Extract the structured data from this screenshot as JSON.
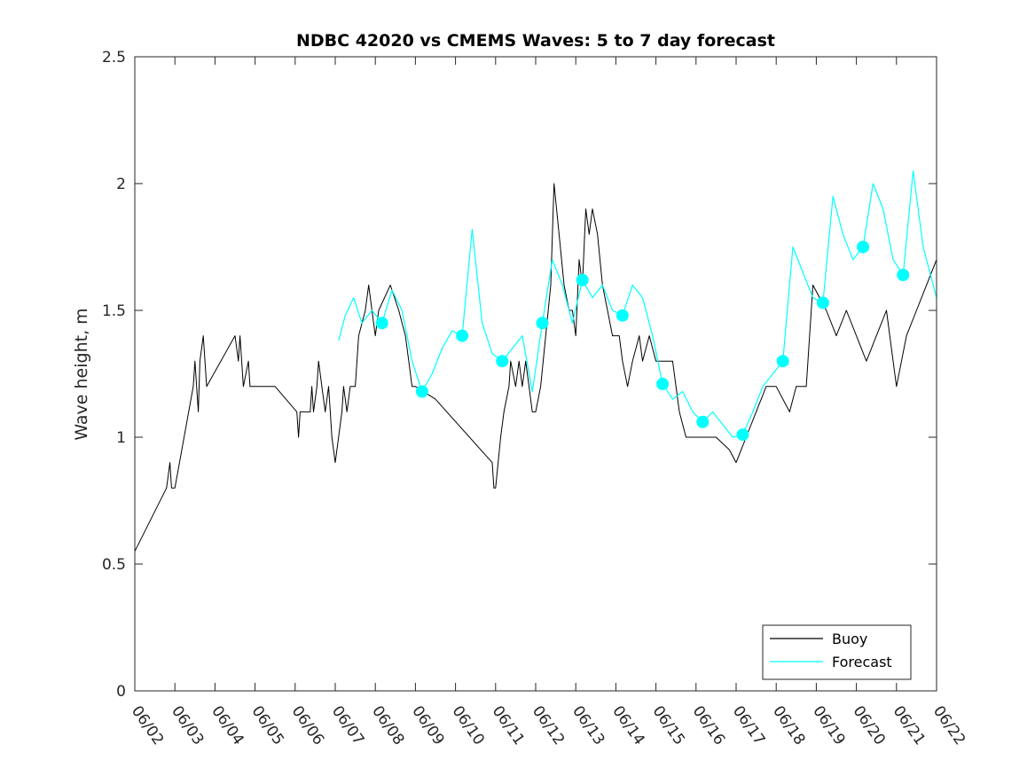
{
  "chart_data": {
    "type": "line",
    "title": "NDBC 42020 vs CMEMS Waves: 5 to 7 day forecast",
    "xlabel": "",
    "ylabel": "Wave height, m",
    "x_axis": {
      "kind": "date",
      "range": [
        "06/02",
        "06/22"
      ],
      "tick_labels": [
        "06/02",
        "06/03",
        "06/04",
        "06/05",
        "06/06",
        "06/07",
        "06/08",
        "06/09",
        "06/10",
        "06/11",
        "06/12",
        "06/13",
        "06/14",
        "06/15",
        "06/16",
        "06/17",
        "06/18",
        "06/19",
        "06/20",
        "06/21",
        "06/22"
      ]
    },
    "y_axis": {
      "range": [
        0,
        2.5
      ],
      "ticks": [
        0,
        0.5,
        1,
        1.5,
        2,
        2.5
      ],
      "tick_labels": [
        "0",
        "0.5",
        "1",
        "1.5",
        "2",
        "2.5"
      ]
    },
    "grid": false,
    "legend": {
      "placement": "bottom-right",
      "entries": [
        {
          "label": "Buoy",
          "color": "#000000"
        },
        {
          "label": "Forecast",
          "color": "#00ffff"
        }
      ]
    },
    "series": [
      {
        "name": "Buoy",
        "color": "#000000",
        "points": [
          [
            "06/02 00:00",
            0.55
          ],
          [
            "06/02 19:00",
            0.8
          ],
          [
            "06/02 21:00",
            0.9
          ],
          [
            "06/02 22:00",
            0.8
          ],
          [
            "06/03 00:00",
            0.8
          ],
          [
            "06/03 11:00",
            1.2
          ],
          [
            "06/03 12:00",
            1.3
          ],
          [
            "06/03 14:00",
            1.1
          ],
          [
            "06/03 15:00",
            1.3
          ],
          [
            "06/03 17:00",
            1.4
          ],
          [
            "06/03 18:00",
            1.3
          ],
          [
            "06/03 19:00",
            1.2
          ],
          [
            "06/04 12:00",
            1.4
          ],
          [
            "06/04 14:00",
            1.3
          ],
          [
            "06/04 15:00",
            1.4
          ],
          [
            "06/04 17:00",
            1.2
          ],
          [
            "06/04 20:00",
            1.3
          ],
          [
            "06/04 21:00",
            1.2
          ],
          [
            "06/05 12:00",
            1.2
          ],
          [
            "06/06 01:00",
            1.1
          ],
          [
            "06/06 02:00",
            1.0
          ],
          [
            "06/06 03:00",
            1.1
          ],
          [
            "06/06 09:00",
            1.1
          ],
          [
            "06/06 10:00",
            1.2
          ],
          [
            "06/06 11:00",
            1.1
          ],
          [
            "06/06 13:00",
            1.2
          ],
          [
            "06/06 14:00",
            1.3
          ],
          [
            "06/06 16:00",
            1.2
          ],
          [
            "06/06 18:00",
            1.1
          ],
          [
            "06/06 20:00",
            1.2
          ],
          [
            "06/06 21:00",
            1.1
          ],
          [
            "06/06 22:00",
            1.0
          ],
          [
            "06/07 00:00",
            0.9
          ],
          [
            "06/07 04:00",
            1.1
          ],
          [
            "06/07 05:00",
            1.2
          ],
          [
            "06/07 07:00",
            1.1
          ],
          [
            "06/07 09:00",
            1.2
          ],
          [
            "06/07 12:00",
            1.2
          ],
          [
            "06/07 14:00",
            1.4
          ],
          [
            "06/07 18:00",
            1.5
          ],
          [
            "06/07 20:00",
            1.6
          ],
          [
            "06/07 22:00",
            1.5
          ],
          [
            "06/08 00:00",
            1.4
          ],
          [
            "06/08 02:00",
            1.5
          ],
          [
            "06/08 09:00",
            1.6
          ],
          [
            "06/08 14:00",
            1.5
          ],
          [
            "06/08 18:00",
            1.4
          ],
          [
            "06/08 20:00",
            1.3
          ],
          [
            "06/08 22:00",
            1.2
          ],
          [
            "06/09 00:00",
            1.2
          ],
          [
            "06/09 12:00",
            1.15
          ],
          [
            "06/10 22:00",
            0.9
          ],
          [
            "06/10 23:00",
            0.8
          ],
          [
            "06/11 00:00",
            0.8
          ],
          [
            "06/11 03:00",
            1.0
          ],
          [
            "06/11 05:00",
            1.1
          ],
          [
            "06/11 08:00",
            1.2
          ],
          [
            "06/11 09:00",
            1.3
          ],
          [
            "06/11 12:00",
            1.2
          ],
          [
            "06/11 14:00",
            1.3
          ],
          [
            "06/11 16:00",
            1.2
          ],
          [
            "06/11 18:00",
            1.3
          ],
          [
            "06/11 20:00",
            1.2
          ],
          [
            "06/11 22:00",
            1.1
          ],
          [
            "06/12 00:00",
            1.1
          ],
          [
            "06/12 03:00",
            1.2
          ],
          [
            "06/12 06:00",
            1.4
          ],
          [
            "06/12 09:00",
            1.6
          ],
          [
            "06/12 11:00",
            2.0
          ],
          [
            "06/12 14:00",
            1.8
          ],
          [
            "06/12 17:00",
            1.6
          ],
          [
            "06/12 20:00",
            1.5
          ],
          [
            "06/12 22:00",
            1.5
          ],
          [
            "06/13 00:00",
            1.4
          ],
          [
            "06/13 02:00",
            1.7
          ],
          [
            "06/13 04:00",
            1.6
          ],
          [
            "06/13 06:00",
            1.9
          ],
          [
            "06/13 08:00",
            1.8
          ],
          [
            "06/13 10:00",
            1.9
          ],
          [
            "06/13 13:00",
            1.8
          ],
          [
            "06/13 16:00",
            1.6
          ],
          [
            "06/13 19:00",
            1.5
          ],
          [
            "06/13 22:00",
            1.4
          ],
          [
            "06/14 02:00",
            1.4
          ],
          [
            "06/14 04:00",
            1.3
          ],
          [
            "06/14 07:00",
            1.2
          ],
          [
            "06/14 10:00",
            1.3
          ],
          [
            "06/14 14:00",
            1.4
          ],
          [
            "06/14 16:00",
            1.3
          ],
          [
            "06/14 20:00",
            1.4
          ],
          [
            "06/15 00:00",
            1.3
          ],
          [
            "06/15 06:00",
            1.3
          ],
          [
            "06/15 10:00",
            1.3
          ],
          [
            "06/15 14:00",
            1.1
          ],
          [
            "06/15 18:00",
            1.0
          ],
          [
            "06/16 00:00",
            1.0
          ],
          [
            "06/16 12:00",
            1.0
          ],
          [
            "06/16 20:00",
            0.95
          ],
          [
            "06/17 00:00",
            0.9
          ],
          [
            "06/17 06:00",
            1.0
          ],
          [
            "06/17 12:00",
            1.1
          ],
          [
            "06/17 18:00",
            1.2
          ],
          [
            "06/18 00:00",
            1.2
          ],
          [
            "06/18 08:00",
            1.1
          ],
          [
            "06/18 12:00",
            1.2
          ],
          [
            "06/18 18:00",
            1.2
          ],
          [
            "06/18 22:00",
            1.6
          ],
          [
            "06/19 06:00",
            1.5
          ],
          [
            "06/19 12:00",
            1.4
          ],
          [
            "06/19 18:00",
            1.5
          ],
          [
            "06/20 00:00",
            1.4
          ],
          [
            "06/20 06:00",
            1.3
          ],
          [
            "06/20 12:00",
            1.4
          ],
          [
            "06/20 18:00",
            1.5
          ],
          [
            "06/21 00:00",
            1.2
          ],
          [
            "06/21 06:00",
            1.4
          ],
          [
            "06/21 12:00",
            1.5
          ],
          [
            "06/21 18:00",
            1.6
          ],
          [
            "06/22 00:00",
            1.7
          ]
        ]
      },
      {
        "name": "Forecast",
        "color": "#00ffff",
        "points": [
          [
            "06/07 02:00",
            1.38
          ],
          [
            "06/07 06:00",
            1.48
          ],
          [
            "06/07 11:00",
            1.55
          ],
          [
            "06/07 16:00",
            1.45
          ],
          [
            "06/07 22:00",
            1.5
          ],
          [
            "06/08 04:00",
            1.45
          ],
          [
            "06/08 10:00",
            1.58
          ],
          [
            "06/08 16:00",
            1.5
          ],
          [
            "06/08 22:00",
            1.3
          ],
          [
            "06/09 04:00",
            1.18
          ],
          [
            "06/09 10:00",
            1.25
          ],
          [
            "06/09 16:00",
            1.35
          ],
          [
            "06/09 22:00",
            1.42
          ],
          [
            "06/10 04:00",
            1.4
          ],
          [
            "06/10 10:00",
            1.82
          ],
          [
            "06/10 16:00",
            1.45
          ],
          [
            "06/10 22:00",
            1.33
          ],
          [
            "06/11 04:00",
            1.3
          ],
          [
            "06/11 10:00",
            1.35
          ],
          [
            "06/11 16:00",
            1.4
          ],
          [
            "06/11 22:00",
            1.18
          ],
          [
            "06/12 04:00",
            1.45
          ],
          [
            "06/12 10:00",
            1.7
          ],
          [
            "06/12 16:00",
            1.6
          ],
          [
            "06/12 22:00",
            1.45
          ],
          [
            "06/13 04:00",
            1.62
          ],
          [
            "06/13 10:00",
            1.55
          ],
          [
            "06/13 16:00",
            1.6
          ],
          [
            "06/13 22:00",
            1.5
          ],
          [
            "06/14 04:00",
            1.48
          ],
          [
            "06/14 10:00",
            1.6
          ],
          [
            "06/14 16:00",
            1.55
          ],
          [
            "06/14 22:00",
            1.4
          ],
          [
            "06/15 04:00",
            1.21
          ],
          [
            "06/15 10:00",
            1.15
          ],
          [
            "06/15 16:00",
            1.18
          ],
          [
            "06/15 22:00",
            1.1
          ],
          [
            "06/16 04:00",
            1.06
          ],
          [
            "06/16 10:00",
            1.1
          ],
          [
            "06/16 16:00",
            1.05
          ],
          [
            "06/16 22:00",
            1.0
          ],
          [
            "06/17 04:00",
            1.01
          ],
          [
            "06/17 10:00",
            1.1
          ],
          [
            "06/17 16:00",
            1.2
          ],
          [
            "06/17 22:00",
            1.25
          ],
          [
            "06/18 04:00",
            1.3
          ],
          [
            "06/18 10:00",
            1.75
          ],
          [
            "06/18 16:00",
            1.65
          ],
          [
            "06/18 22:00",
            1.55
          ],
          [
            "06/19 04:00",
            1.53
          ],
          [
            "06/19 10:00",
            1.95
          ],
          [
            "06/19 16:00",
            1.8
          ],
          [
            "06/19 22:00",
            1.7
          ],
          [
            "06/20 04:00",
            1.75
          ],
          [
            "06/20 10:00",
            2.0
          ],
          [
            "06/20 16:00",
            1.9
          ],
          [
            "06/20 22:00",
            1.7
          ],
          [
            "06/21 04:00",
            1.64
          ],
          [
            "06/21 10:00",
            2.05
          ],
          [
            "06/21 16:00",
            1.75
          ],
          [
            "06/22 00:00",
            1.55
          ]
        ]
      }
    ]
  }
}
